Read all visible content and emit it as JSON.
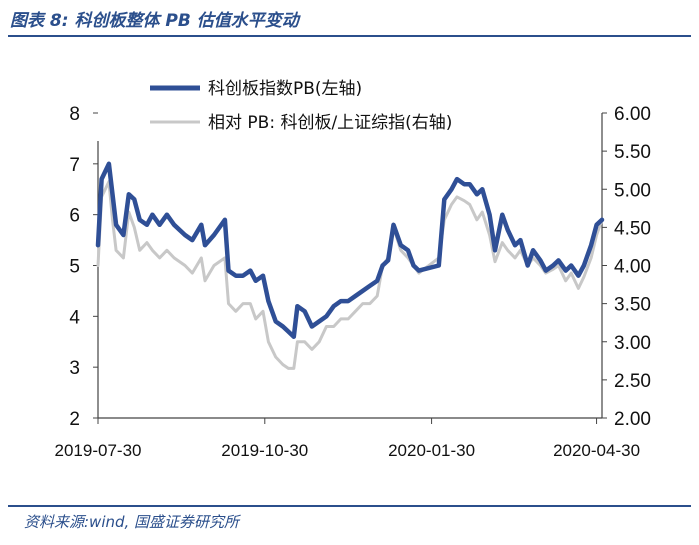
{
  "figure": {
    "title": "图表 8:  科创板整体 PB 估值水平变动",
    "source": "资料来源:wind, 国盛证券研究所"
  },
  "colors": {
    "primary": "#2f4f96",
    "secondary": "#c8c8c8",
    "accent": "#2b4f8c"
  },
  "chart_data": {
    "type": "line",
    "x_ticks": [
      "2019-07-30",
      "2019-10-30",
      "2020-01-30",
      "2020-04-30"
    ],
    "left_axis": {
      "ylim": [
        2,
        8
      ],
      "ticks": [
        "2",
        "3",
        "4",
        "5",
        "6",
        "7",
        "8"
      ]
    },
    "right_axis": {
      "ylim": [
        2.0,
        6.0
      ],
      "ticks": [
        "2.00",
        "2.50",
        "3.00",
        "3.50",
        "4.00",
        "4.50",
        "5.00",
        "5.50",
        "6.00"
      ]
    },
    "legend": {
      "position": "top-center"
    },
    "grid": false,
    "series": [
      {
        "name": "科创板指数PB(左轴)",
        "axis": "left",
        "points": [
          [
            "2019-07-30",
            5.4
          ],
          [
            "2019-08-01",
            6.7
          ],
          [
            "2019-08-05",
            7.0
          ],
          [
            "2019-08-07",
            6.4
          ],
          [
            "2019-08-09",
            5.8
          ],
          [
            "2019-08-13",
            5.6
          ],
          [
            "2019-08-16",
            6.4
          ],
          [
            "2019-08-19",
            6.3
          ],
          [
            "2019-08-22",
            5.9
          ],
          [
            "2019-08-26",
            5.8
          ],
          [
            "2019-08-29",
            6.0
          ],
          [
            "2019-09-02",
            5.8
          ],
          [
            "2019-09-06",
            6.0
          ],
          [
            "2019-09-10",
            5.8
          ],
          [
            "2019-09-16",
            5.6
          ],
          [
            "2019-09-20",
            5.5
          ],
          [
            "2019-09-25",
            5.8
          ],
          [
            "2019-09-27",
            5.4
          ],
          [
            "2019-10-02",
            5.6
          ],
          [
            "2019-10-08",
            5.9
          ],
          [
            "2019-10-10",
            4.9
          ],
          [
            "2019-10-14",
            4.8
          ],
          [
            "2019-10-18",
            4.8
          ],
          [
            "2019-10-22",
            4.9
          ],
          [
            "2019-10-25",
            4.7
          ],
          [
            "2019-10-29",
            4.8
          ],
          [
            "2019-11-01",
            4.3
          ],
          [
            "2019-11-05",
            3.9
          ],
          [
            "2019-11-09",
            3.8
          ],
          [
            "2019-11-12",
            3.7
          ],
          [
            "2019-11-15",
            3.6
          ],
          [
            "2019-11-17",
            4.2
          ],
          [
            "2019-11-21",
            4.1
          ],
          [
            "2019-11-25",
            3.8
          ],
          [
            "2019-11-29",
            3.9
          ],
          [
            "2019-12-03",
            4.0
          ],
          [
            "2019-12-07",
            4.2
          ],
          [
            "2019-12-11",
            4.3
          ],
          [
            "2019-12-15",
            4.3
          ],
          [
            "2019-12-19",
            4.4
          ],
          [
            "2019-12-23",
            4.5
          ],
          [
            "2019-12-27",
            4.6
          ],
          [
            "2019-12-31",
            4.7
          ],
          [
            "2020-01-03",
            5.0
          ],
          [
            "2020-01-06",
            5.1
          ],
          [
            "2020-01-09",
            5.8
          ],
          [
            "2020-01-13",
            5.4
          ],
          [
            "2020-01-17",
            5.3
          ],
          [
            "2020-01-20",
            5.0
          ],
          [
            "2020-01-23",
            4.9
          ],
          [
            "2020-02-03",
            5.0
          ],
          [
            "2020-02-06",
            6.3
          ],
          [
            "2020-02-10",
            6.5
          ],
          [
            "2020-02-13",
            6.7
          ],
          [
            "2020-02-17",
            6.6
          ],
          [
            "2020-02-20",
            6.6
          ],
          [
            "2020-02-24",
            6.4
          ],
          [
            "2020-02-27",
            6.5
          ],
          [
            "2020-03-02",
            6.0
          ],
          [
            "2020-03-05",
            5.3
          ],
          [
            "2020-03-09",
            6.0
          ],
          [
            "2020-03-12",
            5.7
          ],
          [
            "2020-03-16",
            5.4
          ],
          [
            "2020-03-19",
            5.5
          ],
          [
            "2020-03-23",
            5.0
          ],
          [
            "2020-03-26",
            5.3
          ],
          [
            "2020-03-30",
            5.1
          ],
          [
            "2020-04-02",
            4.9
          ],
          [
            "2020-04-06",
            5.0
          ],
          [
            "2020-04-09",
            5.1
          ],
          [
            "2020-04-13",
            4.9
          ],
          [
            "2020-04-16",
            5.0
          ],
          [
            "2020-04-20",
            4.8
          ],
          [
            "2020-04-23",
            5.0
          ],
          [
            "2020-04-27",
            5.4
          ],
          [
            "2020-04-30",
            5.8
          ],
          [
            "2020-05-03",
            5.9
          ]
        ]
      },
      {
        "name": "相对 PB:  科创板/上证综指(右轴)",
        "axis": "right",
        "points": [
          [
            "2019-07-30",
            4.0
          ],
          [
            "2019-08-01",
            4.9
          ],
          [
            "2019-08-05",
            5.1
          ],
          [
            "2019-08-07",
            4.6
          ],
          [
            "2019-08-09",
            4.2
          ],
          [
            "2019-08-13",
            4.1
          ],
          [
            "2019-08-16",
            4.7
          ],
          [
            "2019-08-19",
            4.5
          ],
          [
            "2019-08-22",
            4.2
          ],
          [
            "2019-08-26",
            4.3
          ],
          [
            "2019-08-29",
            4.2
          ],
          [
            "2019-09-02",
            4.1
          ],
          [
            "2019-09-06",
            4.2
          ],
          [
            "2019-09-10",
            4.1
          ],
          [
            "2019-09-16",
            4.0
          ],
          [
            "2019-09-20",
            3.9
          ],
          [
            "2019-09-25",
            4.1
          ],
          [
            "2019-09-27",
            3.8
          ],
          [
            "2019-10-02",
            4.0
          ],
          [
            "2019-10-08",
            4.1
          ],
          [
            "2019-10-10",
            3.5
          ],
          [
            "2019-10-14",
            3.4
          ],
          [
            "2019-10-18",
            3.5
          ],
          [
            "2019-10-22",
            3.5
          ],
          [
            "2019-10-25",
            3.3
          ],
          [
            "2019-10-29",
            3.4
          ],
          [
            "2019-11-01",
            3.0
          ],
          [
            "2019-11-05",
            2.8
          ],
          [
            "2019-11-09",
            2.7
          ],
          [
            "2019-11-12",
            2.65
          ],
          [
            "2019-11-15",
            2.65
          ],
          [
            "2019-11-17",
            3.0
          ],
          [
            "2019-11-21",
            3.0
          ],
          [
            "2019-11-25",
            2.9
          ],
          [
            "2019-11-29",
            3.0
          ],
          [
            "2019-12-03",
            3.2
          ],
          [
            "2019-12-07",
            3.2
          ],
          [
            "2019-12-11",
            3.3
          ],
          [
            "2019-12-15",
            3.3
          ],
          [
            "2019-12-19",
            3.4
          ],
          [
            "2019-12-23",
            3.5
          ],
          [
            "2019-12-27",
            3.5
          ],
          [
            "2019-12-31",
            3.6
          ],
          [
            "2020-01-03",
            4.0
          ],
          [
            "2020-01-06",
            4.1
          ],
          [
            "2020-01-09",
            4.5
          ],
          [
            "2020-01-13",
            4.2
          ],
          [
            "2020-01-17",
            4.1
          ],
          [
            "2020-01-20",
            4.0
          ],
          [
            "2020-01-23",
            3.9
          ],
          [
            "2020-02-03",
            4.1
          ],
          [
            "2020-02-06",
            4.6
          ],
          [
            "2020-02-10",
            4.8
          ],
          [
            "2020-02-13",
            4.9
          ],
          [
            "2020-02-17",
            4.85
          ],
          [
            "2020-02-20",
            4.8
          ],
          [
            "2020-02-24",
            4.6
          ],
          [
            "2020-02-27",
            4.7
          ],
          [
            "2020-03-02",
            4.4
          ],
          [
            "2020-03-05",
            4.05
          ],
          [
            "2020-03-09",
            4.3
          ],
          [
            "2020-03-12",
            4.2
          ],
          [
            "2020-03-16",
            4.1
          ],
          [
            "2020-03-19",
            4.2
          ],
          [
            "2020-03-23",
            4.0
          ],
          [
            "2020-03-26",
            4.1
          ],
          [
            "2020-03-30",
            4.0
          ],
          [
            "2020-04-02",
            3.9
          ],
          [
            "2020-04-06",
            3.95
          ],
          [
            "2020-04-09",
            4.0
          ],
          [
            "2020-04-13",
            3.8
          ],
          [
            "2020-04-16",
            3.9
          ],
          [
            "2020-04-20",
            3.7
          ],
          [
            "2020-04-23",
            3.85
          ],
          [
            "2020-04-27",
            4.1
          ],
          [
            "2020-04-30",
            4.4
          ],
          [
            "2020-05-03",
            4.6
          ]
        ]
      }
    ]
  }
}
